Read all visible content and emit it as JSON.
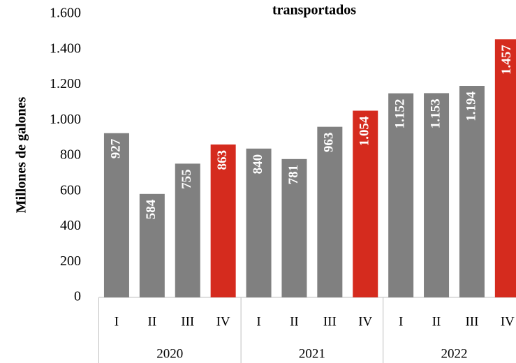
{
  "chart_data": {
    "type": "bar",
    "title": "transportados",
    "y_label": "Millones de galones",
    "categories": [
      "I",
      "II",
      "III",
      "IV",
      "I",
      "II",
      "III",
      "IV",
      "I",
      "II",
      "III",
      "IV"
    ],
    "groups": [
      "2020",
      "2021",
      "2022"
    ],
    "values": [
      927,
      584,
      755,
      863,
      840,
      781,
      963,
      1054,
      1152,
      1153,
      1194,
      1457
    ],
    "value_labels": [
      "927",
      "584",
      "755",
      "863",
      "840",
      "781",
      "963",
      "1.054",
      "1.152",
      "1.153",
      "1.194",
      "1.457"
    ],
    "colors": [
      "#808080",
      "#808080",
      "#808080",
      "#d52b1e",
      "#808080",
      "#808080",
      "#808080",
      "#d52b1e",
      "#808080",
      "#808080",
      "#808080",
      "#d52b1e"
    ],
    "ylim": [
      0,
      1600
    ],
    "yticks": [
      0,
      200,
      400,
      600,
      800,
      {
        "value": 1000,
        "label": "1.000"
      },
      {
        "value": 1200,
        "label": "1.200"
      },
      {
        "value": 1400,
        "label": "1.400"
      },
      {
        "value": 1600,
        "label": "1.600"
      }
    ],
    "grid": false
  }
}
